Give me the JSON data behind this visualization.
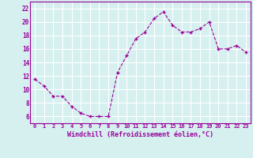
{
  "x": [
    0,
    1,
    2,
    3,
    4,
    5,
    6,
    7,
    8,
    9,
    10,
    11,
    12,
    13,
    14,
    15,
    16,
    17,
    18,
    19,
    20,
    21,
    22,
    23
  ],
  "y": [
    11.5,
    10.5,
    9.0,
    9.0,
    7.5,
    6.5,
    6.0,
    6.0,
    6.0,
    12.5,
    15.0,
    17.5,
    18.5,
    20.5,
    21.5,
    19.5,
    18.5,
    18.5,
    19.0,
    20.0,
    16.0,
    16.0,
    16.5,
    15.5
  ],
  "xlim": [
    -0.5,
    23.5
  ],
  "ylim": [
    5,
    23
  ],
  "yticks": [
    6,
    8,
    10,
    12,
    14,
    16,
    18,
    20,
    22
  ],
  "xtick_labels": [
    "0",
    "1",
    "2",
    "3",
    "4",
    "5",
    "6",
    "7",
    "8",
    "9",
    "10",
    "11",
    "12",
    "13",
    "14",
    "15",
    "16",
    "17",
    "18",
    "19",
    "20",
    "21",
    "22",
    "23"
  ],
  "xlabel": "Windchill (Refroidissement éolien,°C)",
  "line_color": "#990099",
  "marker": "+",
  "bg_color": "#d6f0f0",
  "grid_color": "#ffffff",
  "tick_color": "#990099",
  "label_color": "#990099",
  "spine_color": "#990099"
}
